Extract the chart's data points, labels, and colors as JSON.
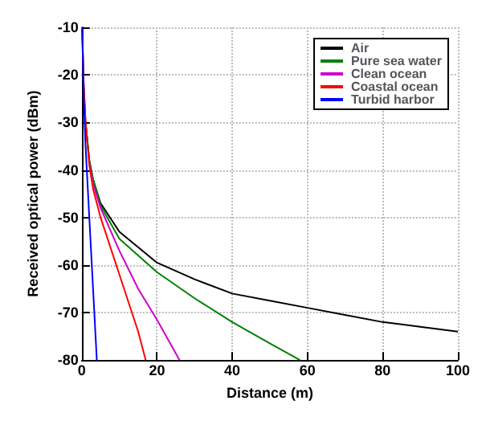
{
  "chart_data": {
    "type": "line",
    "xlabel": "Distance (m)",
    "ylabel": "Received optical power (dBm)",
    "xlim": [
      0,
      100
    ],
    "xticks": [
      0,
      20,
      40,
      60,
      80,
      100
    ],
    "ylim": [
      -80,
      -10
    ],
    "yticks": [
      -80,
      -70,
      -60,
      -50,
      -40,
      -30,
      -20,
      -10
    ],
    "grid": true,
    "legend": "top right",
    "line_style": "solid",
    "series": [
      {
        "name": "Air",
        "color": "#000000",
        "x": [
          0.1,
          0.5,
          1,
          2,
          3,
          5,
          10,
          20,
          30,
          40,
          50,
          60,
          70,
          80,
          90,
          100
        ],
        "values": [
          -10,
          -22,
          -30,
          -38,
          -42,
          -47,
          -53,
          -59.5,
          -63,
          -66,
          -67.5,
          -69,
          -70.5,
          -72,
          -73,
          -74
        ]
      },
      {
        "name": "Pure sea water",
        "color": "#008000",
        "x": [
          1,
          2,
          3,
          5,
          10,
          20,
          30,
          40,
          50,
          58
        ],
        "values": [
          -30,
          -38,
          -42,
          -47.5,
          -54.5,
          -61.5,
          -67,
          -72,
          -76.5,
          -80
        ]
      },
      {
        "name": "Clean ocean",
        "color": "#cc00cc",
        "x": [
          2,
          3,
          5,
          10,
          15,
          20,
          26
        ],
        "values": [
          -38.5,
          -43,
          -48,
          -57,
          -65,
          -71.5,
          -80
        ]
      },
      {
        "name": "Coastal ocean",
        "color": "#ff0000",
        "x": [
          0.1,
          0.5,
          1,
          2,
          3,
          5,
          10,
          15,
          17
        ],
        "values": [
          -10,
          -22,
          -30,
          -39,
          -44,
          -50,
          -62,
          -74,
          -80
        ]
      },
      {
        "name": "Turbid harbor",
        "color": "#0000ff",
        "x": [
          0.1,
          0.5,
          1,
          2,
          3,
          4
        ],
        "values": [
          -10,
          -24,
          -35,
          -50,
          -65,
          -80
        ]
      }
    ]
  }
}
